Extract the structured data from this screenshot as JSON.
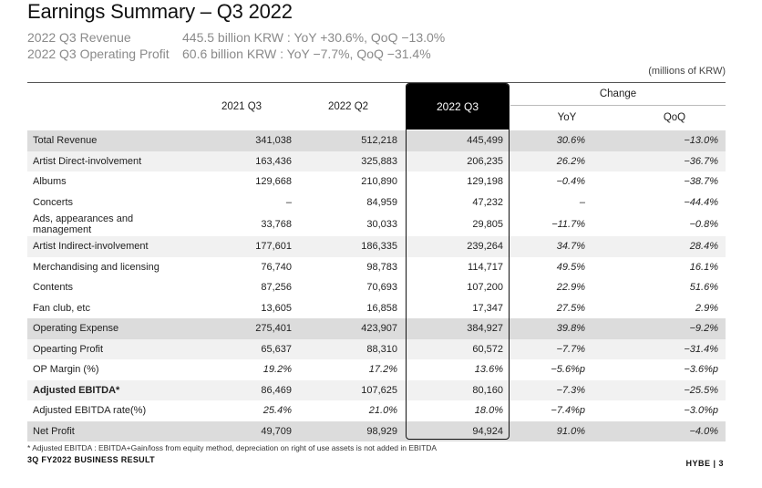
{
  "title": "Earnings Summary – Q3 2022",
  "subtitle": [
    {
      "label": "2022 Q3 Revenue",
      "value": "445.5 billion KRW : YoY  +30.6%, QoQ  −13.0%"
    },
    {
      "label": "2022 Q3 Operating Profit",
      "value": "60.6 billion KRW : YoY   −7.7%, QoQ  −31.4%"
    }
  ],
  "units": "(millions of KRW)",
  "headers": {
    "col1": "2021 Q3",
    "col2": "2022 Q2",
    "col3": "2022 Q3",
    "change": "Change",
    "yoy": "YoY",
    "qoq": "QoQ"
  },
  "rows": [
    {
      "label": "Total Revenue",
      "q3_2021": "341,038",
      "q2_2022": "512,218",
      "q3_2022": "445,499",
      "yoy": "30.6%",
      "qoq": "−13.0%"
    },
    {
      "label": "Artist Direct-involvement",
      "q3_2021": "163,436",
      "q2_2022": "325,883",
      "q3_2022": "206,235",
      "yoy": "26.2%",
      "qoq": "−36.7%"
    },
    {
      "label": "Albums",
      "q3_2021": "129,668",
      "q2_2022": "210,890",
      "q3_2022": "129,198",
      "yoy": "−0.4%",
      "qoq": "−38.7%"
    },
    {
      "label": "Concerts",
      "q3_2021": "–",
      "q2_2022": "84,959",
      "q3_2022": "47,232",
      "yoy": "–",
      "qoq": "−44.4%"
    },
    {
      "label": "Ads, appearances and management",
      "q3_2021": "33,768",
      "q2_2022": "30,033",
      "q3_2022": "29,805",
      "yoy": "−11.7%",
      "qoq": "−0.8%"
    },
    {
      "label": "Artist Indirect-involvement",
      "q3_2021": "177,601",
      "q2_2022": "186,335",
      "q3_2022": "239,264",
      "yoy": "34.7%",
      "qoq": "28.4%"
    },
    {
      "label": "Merchandising and licensing",
      "q3_2021": "76,740",
      "q2_2022": "98,783",
      "q3_2022": "114,717",
      "yoy": "49.5%",
      "qoq": "16.1%"
    },
    {
      "label": "Contents",
      "q3_2021": "87,256",
      "q2_2022": "70,693",
      "q3_2022": "107,200",
      "yoy": "22.9%",
      "qoq": "51.6%"
    },
    {
      "label": "Fan club, etc",
      "q3_2021": "13,605",
      "q2_2022": "16,858",
      "q3_2022": "17,347",
      "yoy": "27.5%",
      "qoq": "2.9%"
    },
    {
      "label": "Operating Expense",
      "q3_2021": "275,401",
      "q2_2022": "423,907",
      "q3_2022": "384,927",
      "yoy": "39.8%",
      "qoq": "−9.2%"
    },
    {
      "label": "Opearting Profit",
      "q3_2021": "65,637",
      "q2_2022": "88,310",
      "q3_2022": "60,572",
      "yoy": "−7.7%",
      "qoq": "−31.4%"
    },
    {
      "label": "OP Margin (%)",
      "q3_2021": "19.2%",
      "q2_2022": "17.2%",
      "q3_2022": "13.6%",
      "yoy": "−5.6%p",
      "qoq": "−3.6%p"
    },
    {
      "label": "Adjusted EBITDA*",
      "q3_2021": "86,469",
      "q2_2022": "107,625",
      "q3_2022": "80,160",
      "yoy": "−7.3%",
      "qoq": "−25.5%"
    },
    {
      "label": "Adjusted EBITDA rate(%)",
      "q3_2021": "25.4%",
      "q2_2022": "21.0%",
      "q3_2022": "18.0%",
      "yoy": "−7.4%p",
      "qoq": "−3.0%p"
    },
    {
      "label": "Net Profit",
      "q3_2021": "49,709",
      "q2_2022": "98,929",
      "q3_2022": "94,924",
      "yoy": "91.0%",
      "qoq": "−4.0%"
    }
  ],
  "footnote": "* Adjusted EBITDA : EBITDA+Gain/loss from equity method, depreciation on right of use assets is not added in EBITDA",
  "footer_left": "3Q FY2022 BUSINESS RESULT",
  "footer_right": "HYBE  |  3"
}
